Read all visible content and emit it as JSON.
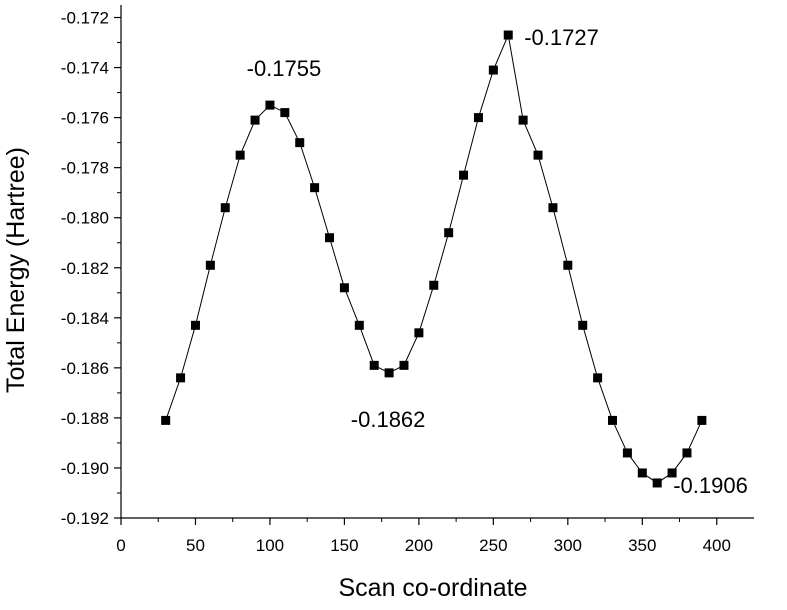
{
  "chart_data": {
    "type": "scatter",
    "title": "",
    "xlabel": "Scan co-ordinate",
    "ylabel": "Total Energy (Hartree)",
    "xlim": [
      0,
      425
    ],
    "ylim": [
      -0.192,
      -0.1715
    ],
    "x_ticks": [
      0,
      50,
      100,
      150,
      200,
      250,
      300,
      350,
      400
    ],
    "x_tick_labels": [
      "0",
      "50",
      "100",
      "150",
      "200",
      "250",
      "300",
      "350",
      "400"
    ],
    "y_ticks": [
      -0.192,
      -0.19,
      -0.188,
      -0.186,
      -0.184,
      -0.182,
      -0.18,
      -0.178,
      -0.176,
      -0.174,
      -0.172
    ],
    "y_tick_labels": [
      "-0.192",
      "-0.190",
      "-0.188",
      "-0.186",
      "-0.184",
      "-0.182",
      "-0.180",
      "-0.178",
      "-0.176",
      "-0.174",
      "-0.172"
    ],
    "grid": false,
    "legend": "none",
    "series": [
      {
        "marker": "square",
        "line": "connected",
        "x": [
          30,
          40,
          50,
          60,
          70,
          80,
          90,
          100,
          110,
          120,
          130,
          140,
          150,
          160,
          170,
          180,
          190,
          200,
          210,
          220,
          230,
          240,
          250,
          260,
          270,
          280,
          290,
          300,
          310,
          320,
          330,
          340,
          350,
          360,
          370,
          380,
          390
        ],
        "y": [
          -0.1881,
          -0.1864,
          -0.1843,
          -0.1819,
          -0.1796,
          -0.1775,
          -0.1761,
          -0.1755,
          -0.1758,
          -0.177,
          -0.1788,
          -0.1808,
          -0.1828,
          -0.1843,
          -0.1859,
          -0.1862,
          -0.1859,
          -0.1846,
          -0.1827,
          -0.1806,
          -0.1783,
          -0.176,
          -0.1741,
          -0.1727,
          -0.1761,
          -0.1775,
          -0.1796,
          -0.1819,
          -0.1843,
          -0.1864,
          -0.1881,
          -0.1894,
          -0.1902,
          -0.1906,
          -0.1902,
          -0.1894,
          -0.1881
        ]
      }
    ],
    "annotations": [
      {
        "text": "-0.1755",
        "x": 100,
        "y": -0.1755,
        "position": "above"
      },
      {
        "text": "-0.1727",
        "x": 260,
        "y": -0.1727,
        "position": "right"
      },
      {
        "text": "-0.1862",
        "x": 180,
        "y": -0.1862,
        "position": "below"
      },
      {
        "text": "-0.1906",
        "x": 360,
        "y": -0.1906,
        "position": "right"
      }
    ],
    "colors": {
      "marker": "#000000",
      "line": "#000000",
      "axis": "#000000"
    }
  }
}
